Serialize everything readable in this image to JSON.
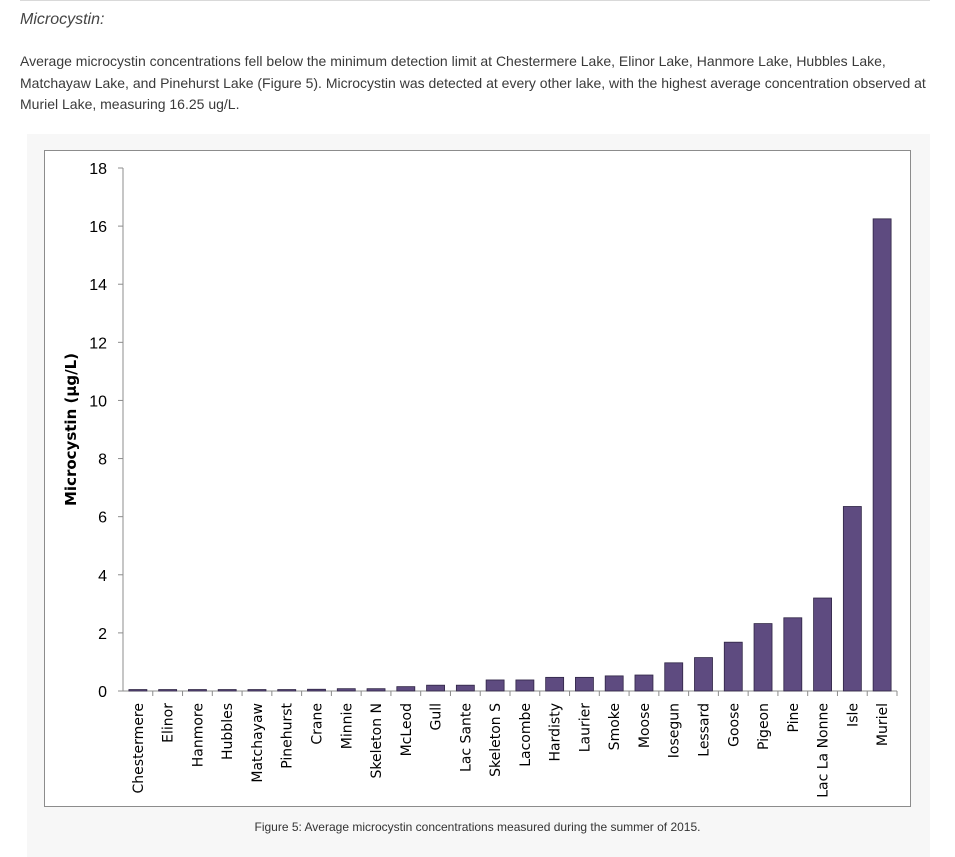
{
  "page": {
    "heading": "Microcystin:",
    "paragraph": "Average microcystin concentrations fell below the minimum detection limit at Chestermere Lake, Elinor Lake, Hanmore Lake, Hubbles Lake, Matchayaw Lake, and Pinehurst Lake (Figure 5). Microcystin was detected at every other lake, with the highest average concentration observed at Muriel Lake, measuring 16.25 ug/L.",
    "caption": "Figure 5: Average microcystin concentrations measured during the summer of 2015."
  },
  "colors": {
    "bar": "#5e4b80",
    "bar_edge": "#2e2444",
    "axis": "#8c8c8c"
  },
  "chart_data": {
    "type": "bar",
    "ylabel": "Microcystin (µg/L)",
    "xlabel": "",
    "ylim": [
      0,
      18
    ],
    "yticks": [
      0,
      2,
      4,
      6,
      8,
      10,
      12,
      14,
      16,
      18
    ],
    "grid": false,
    "categories": [
      "Chestermere",
      "Elinor",
      "Hanmore",
      "Hubbles",
      "Matchayaw",
      "Pinehurst",
      "Crane",
      "Minnie",
      "Skeleton N",
      "McLeod",
      "Gull",
      "Lac Sante",
      "Skeleton S",
      "Lacombe",
      "Hardisty",
      "Laurier",
      "Smoke",
      "Moose",
      "Iosegun",
      "Lessard",
      "Goose",
      "Pigeon",
      "Pine",
      "Lac La Nonne",
      "Isle",
      "Muriel"
    ],
    "values": [
      0.05,
      0.05,
      0.05,
      0.05,
      0.05,
      0.05,
      0.06,
      0.08,
      0.08,
      0.15,
      0.2,
      0.2,
      0.38,
      0.38,
      0.47,
      0.47,
      0.52,
      0.55,
      0.97,
      1.15,
      1.68,
      2.32,
      2.52,
      3.2,
      6.35,
      16.25
    ]
  }
}
